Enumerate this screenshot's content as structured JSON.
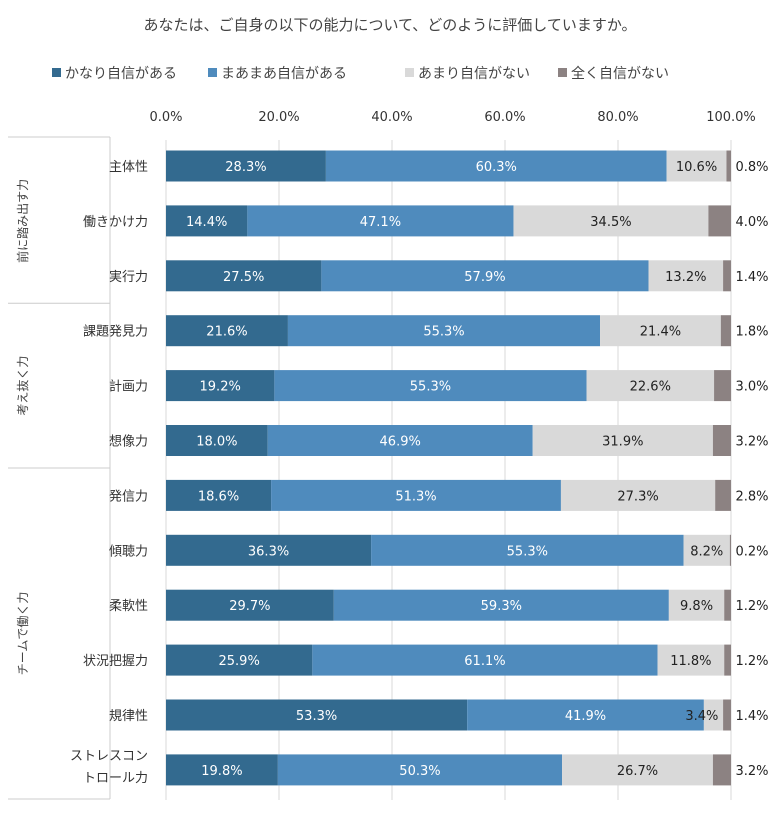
{
  "chart_data": {
    "type": "bar",
    "orientation": "horizontal",
    "stacked": true,
    "title": "あなたは、ご自身の以下の能力について、どのように評価していますか。",
    "legend_position": "top",
    "xlim": [
      0,
      100
    ],
    "x_ticks": [
      "0.0%",
      "20.0%",
      "40.0%",
      "60.0%",
      "80.0%",
      "100.0%"
    ],
    "grid": true,
    "groups": [
      {
        "label": "前に踏み出す力",
        "categories": [
          "主体性",
          "働きかけ力",
          "実行力"
        ]
      },
      {
        "label": "考え抜く力",
        "categories": [
          "課題発見力",
          "計画力",
          "想像力"
        ]
      },
      {
        "label": "チームで働く力",
        "categories": [
          "発信力",
          "傾聴力",
          "柔軟性",
          "状況把握力",
          "規律性",
          "ストレスコントロール力"
        ]
      }
    ],
    "categories": [
      "主体性",
      "働きかけ力",
      "実行力",
      "課題発見力",
      "計画力",
      "想像力",
      "発信力",
      "傾聴力",
      "柔軟性",
      "状況把握力",
      "規律性",
      "ストレスコントロール力"
    ],
    "category_display": [
      "主体性",
      "働きかけ力",
      "実行力",
      "課題発見力",
      "計画力",
      "想像力",
      "発信力",
      "傾聴力",
      "柔軟性",
      "状況把握力",
      "規律性",
      "ストレスコン\nトロール力"
    ],
    "series": [
      {
        "name": "かなり自信がある",
        "color": "#336a8f",
        "values": [
          28.3,
          14.4,
          27.5,
          21.6,
          19.2,
          18.0,
          18.6,
          36.3,
          29.7,
          25.9,
          53.3,
          19.8
        ]
      },
      {
        "name": "まあまあ自信がある",
        "color": "#4f8bbd",
        "values": [
          60.3,
          47.1,
          57.9,
          55.3,
          55.3,
          46.9,
          51.3,
          55.3,
          59.3,
          61.1,
          41.9,
          50.3
        ]
      },
      {
        "name": "あまり自信がない",
        "color": "#d9d9d9",
        "values": [
          10.6,
          34.5,
          13.2,
          21.4,
          22.6,
          31.9,
          27.3,
          8.2,
          9.8,
          11.8,
          3.4,
          26.7
        ]
      },
      {
        "name": "全く自信がない",
        "color": "#8c8282",
        "values": [
          0.8,
          4.0,
          1.4,
          1.8,
          3.0,
          3.2,
          2.8,
          0.2,
          1.2,
          1.2,
          1.4,
          3.2
        ]
      }
    ],
    "data_labels": [
      [
        "28.3%",
        "60.3%",
        "10.6%",
        "0.8%"
      ],
      [
        "14.4%",
        "47.1%",
        "34.5%",
        "4.0%"
      ],
      [
        "27.5%",
        "57.9%",
        "13.2%",
        "1.4%"
      ],
      [
        "21.6%",
        "55.3%",
        "21.4%",
        "1.8%"
      ],
      [
        "19.2%",
        "55.3%",
        "22.6%",
        "3.0%"
      ],
      [
        "18.0%",
        "46.9%",
        "31.9%",
        "3.2%"
      ],
      [
        "18.6%",
        "51.3%",
        "27.3%",
        "2.8%"
      ],
      [
        "36.3%",
        "55.3%",
        "8.2%",
        "0.2%"
      ],
      [
        "29.7%",
        "59.3%",
        "9.8%",
        "1.2%"
      ],
      [
        "25.9%",
        "61.1%",
        "11.8%",
        "1.2%"
      ],
      [
        "53.3%",
        "41.9%",
        "3.4%",
        "1.4%"
      ],
      [
        "19.8%",
        "50.3%",
        "26.7%",
        "3.2%"
      ]
    ]
  }
}
